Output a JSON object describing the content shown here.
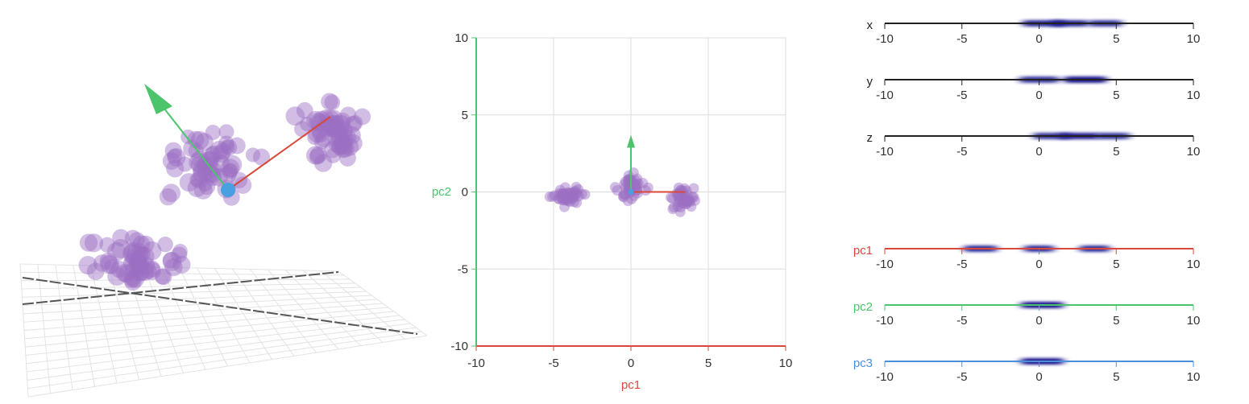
{
  "colors": {
    "pc1": "#d9483b",
    "pc2": "#4cc46c",
    "pc3": "#4a90d9",
    "point": "#9b6fc4",
    "origin": "#4a9fe0",
    "density": "#1a1590",
    "grid": "#dddddd",
    "axis": "#222222"
  },
  "chart_data": [
    {
      "type": "scatter",
      "view": "3d",
      "axes_drawn": [
        "pc1-vector",
        "pc2-vector",
        "pc3-vector"
      ],
      "clusters": [
        {
          "center": [
            -4,
            0,
            0
          ]
        },
        {
          "center": [
            0,
            0,
            0
          ]
        },
        {
          "center": [
            4,
            0,
            0
          ]
        }
      ],
      "grid": true
    },
    {
      "type": "scatter",
      "xlabel": "pc1",
      "ylabel": "pc2",
      "xlim": [
        -10,
        10
      ],
      "ylim": [
        -10,
        10
      ],
      "xticks": [
        "-10",
        "-5",
        "0",
        "5",
        "10"
      ],
      "yticks": [
        "-10",
        "-5",
        "0",
        "5",
        "10"
      ],
      "grid": true,
      "vectors": [
        {
          "name": "pc1",
          "x": 3.5,
          "y": 0
        },
        {
          "name": "pc2",
          "x": 0,
          "y": 3.5
        }
      ],
      "clusters": [
        {
          "center": [
            -4,
            -0.3
          ],
          "spread": [
            1.3,
            0.8
          ],
          "count": 45
        },
        {
          "center": [
            0,
            0.4
          ],
          "spread": [
            1.0,
            1.0
          ],
          "count": 45
        },
        {
          "center": [
            3.4,
            -0.5
          ],
          "spread": [
            1.2,
            0.9
          ],
          "count": 45
        }
      ]
    },
    {
      "type": "density-strips",
      "ticks": [
        "-10",
        "-5",
        "0",
        "5",
        "10"
      ],
      "xlim": [
        -10,
        10
      ],
      "strips": [
        {
          "label": "x",
          "color": "axis",
          "blobs": [
            {
              "c": 0.3,
              "w": 1.4,
              "a": 0.9
            },
            {
              "c": 2.0,
              "w": 1.2,
              "a": 0.9
            },
            {
              "c": 4.3,
              "w": 1.1,
              "a": 0.85
            }
          ]
        },
        {
          "label": "y",
          "color": "axis",
          "blobs": [
            {
              "c": 0.0,
              "w": 1.3,
              "a": 0.85
            },
            {
              "c": 3.0,
              "w": 1.4,
              "a": 1.0
            }
          ]
        },
        {
          "label": "z",
          "color": "axis",
          "blobs": [
            {
              "c": 0.8,
              "w": 1.2,
              "a": 0.85
            },
            {
              "c": 2.6,
              "w": 1.3,
              "a": 0.95
            },
            {
              "c": 4.8,
              "w": 1.1,
              "a": 0.85
            }
          ]
        },
        {
          "label": "pc1",
          "color": "pc1",
          "blobs": [
            {
              "c": -3.8,
              "w": 1.1,
              "a": 0.9
            },
            {
              "c": 0.0,
              "w": 1.0,
              "a": 0.9
            },
            {
              "c": 3.6,
              "w": 1.0,
              "a": 0.9
            }
          ]
        },
        {
          "label": "pc2",
          "color": "pc2",
          "blobs": [
            {
              "c": 0.2,
              "w": 1.4,
              "a": 1.0
            }
          ]
        },
        {
          "label": "pc3",
          "color": "pc3",
          "blobs": [
            {
              "c": 0.2,
              "w": 1.4,
              "a": 1.0
            }
          ]
        }
      ]
    }
  ]
}
